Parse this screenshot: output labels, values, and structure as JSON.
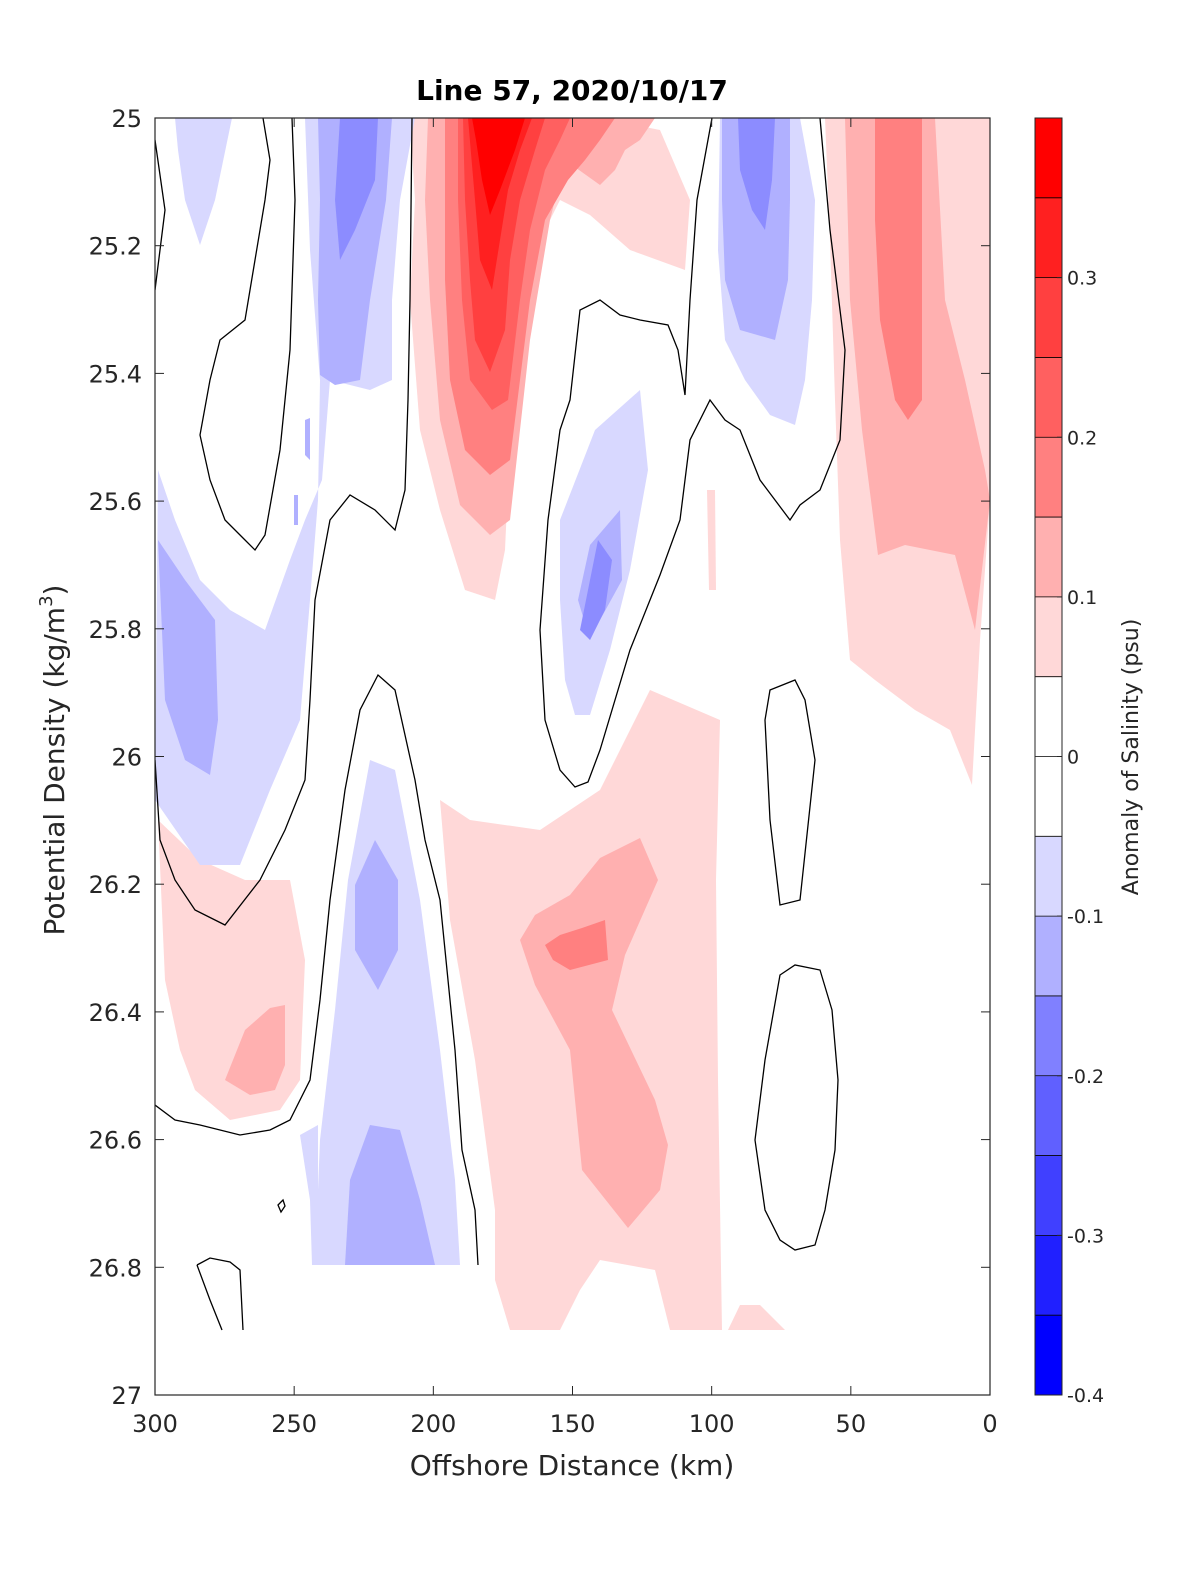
{
  "chart_data": {
    "type": "heatmap",
    "title": "Line 57, 2020/10/17",
    "xlabel": "Offshore Distance (km)",
    "ylabel": "Potential Density (kg/m",
    "ylabel_sup": "3",
    "ylabel_close": ")",
    "colorbar_label": "Anomaly of Salinity (psu)",
    "xlim": [
      300,
      0
    ],
    "ylim": [
      25,
      27
    ],
    "x_reversed": true,
    "y_reversed": true,
    "x_ticks": [
      300,
      250,
      200,
      150,
      100,
      50,
      0
    ],
    "x_tick_labels": [
      "300",
      "250",
      "200",
      "150",
      "100",
      "50",
      "0"
    ],
    "y_ticks": [
      25,
      25.2,
      25.4,
      25.6,
      25.8,
      26,
      26.2,
      26.4,
      26.6,
      26.8,
      27
    ],
    "y_tick_labels": [
      "25",
      "25.2",
      "25.4",
      "25.6",
      "25.8",
      "26",
      "26.2",
      "26.4",
      "26.6",
      "26.8",
      "27"
    ],
    "colorbar": {
      "range": [
        -0.4,
        0.4
      ],
      "levels": [
        -0.4,
        -0.35,
        -0.3,
        -0.25,
        -0.2,
        -0.15,
        -0.1,
        -0.05,
        0,
        0.05,
        0.1,
        0.15,
        0.2,
        0.25,
        0.3,
        0.35,
        0.4
      ],
      "colors": [
        "#0000ff",
        "#2020ff",
        "#4040ff",
        "#6060ff",
        "#8080ff",
        "#b0b0ff",
        "#d8d8ff",
        "#ffffff",
        "#ffffff",
        "#ffd8d8",
        "#ffb0b0",
        "#ff8080",
        "#ff6060",
        "#ff4040",
        "#ff2020",
        "#ff0000"
      ],
      "tick_values": [
        -0.4,
        -0.3,
        -0.2,
        -0.1,
        0,
        0.1,
        0.2,
        0.3
      ],
      "tick_labels": [
        "-0.4",
        "-0.3",
        "-0.2",
        "-0.1",
        "0",
        "0.1",
        "0.2",
        "0.3"
      ]
    },
    "anomaly_regions": [
      {
        "name": "near-surface salty core",
        "x_center": 178,
        "sigma_center": 25.05,
        "anomaly": 0.35
      },
      {
        "name": "offshore fresh tongue",
        "x_center": 290,
        "sigma_center": 25.85,
        "anomaly": -0.15
      },
      {
        "name": "fresh core 230 km",
        "x_center": 228,
        "sigma_center": 25.15,
        "anomaly": -0.2
      },
      {
        "name": "fresh core 85 km",
        "x_center": 85,
        "sigma_center": 25.12,
        "anomaly": -0.2
      },
      {
        "name": "nearshore salty band",
        "x_center": 25,
        "sigma_center": 25.35,
        "anomaly": 0.2
      },
      {
        "name": "fresh lens 145 km",
        "x_center": 145,
        "sigma_center": 25.75,
        "anomaly": -0.15
      },
      {
        "name": "fresh column 220 km",
        "x_center": 220,
        "sigma_center": 26.25,
        "anomaly": -0.15
      },
      {
        "name": "deep fresh 215 km",
        "x_center": 215,
        "sigma_center": 26.7,
        "anomaly": -0.15
      },
      {
        "name": "salty patch 140 km",
        "x_center": 140,
        "sigma_center": 26.3,
        "anomaly": 0.2
      },
      {
        "name": "salty patch 265 km",
        "x_center": 265,
        "sigma_center": 26.48,
        "anomaly": 0.15
      },
      {
        "name": "salty band 120 km",
        "x_center": 125,
        "sigma_center": 26.5,
        "anomaly": 0.1
      }
    ]
  }
}
